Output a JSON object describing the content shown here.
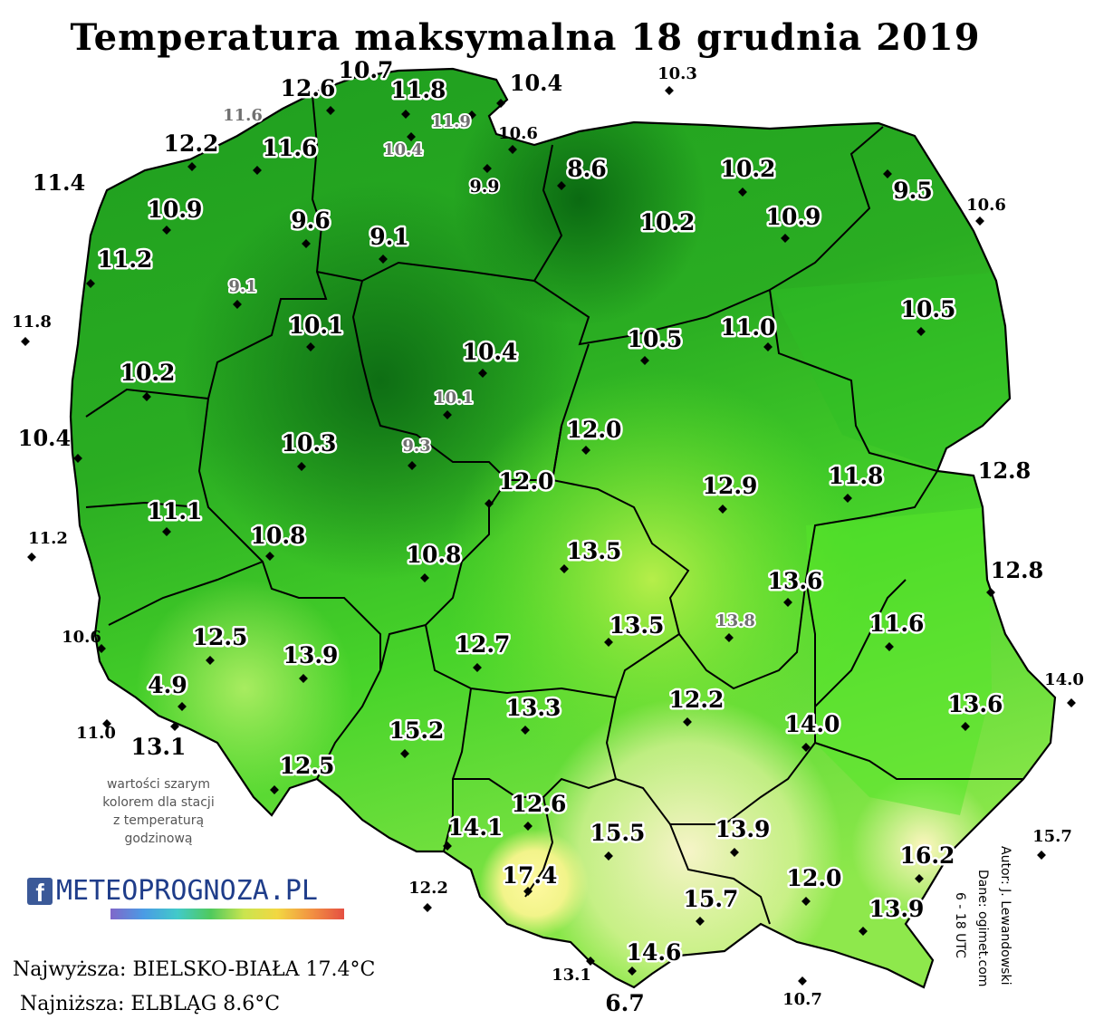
{
  "title": "Temperatura maksymalna 18 grudnia 2019",
  "note": [
    "wartości szarym",
    "kolorem dla stacji",
    "z temperaturą",
    "godzinową"
  ],
  "logo": {
    "fb": "f",
    "text": "METEOPROGNOZA.PL"
  },
  "extremes": {
    "max": "Najwyższa: BIELSKO-BIAŁA 17.4°C",
    "min": "Najniższa: ELBLĄG 8.6°C"
  },
  "credits": {
    "author": "Autor: J. Lewandowski",
    "data_source": "Dane: ogimet.com",
    "hours": "6 - 18 UTC"
  },
  "colors": {
    "cold": "#0f7a18",
    "mid": "#2fb820",
    "light": "#5ee82c",
    "warm": "#b8f060",
    "hot": "#f4f4a8",
    "border": "#000000"
  },
  "stations_inside": [
    "12.6",
    "10.7",
    "11.8",
    "11.6",
    "12.2",
    "10.9",
    "11.2",
    "9.6",
    "9.1",
    "10.1",
    "10.2",
    "11.1",
    "10.8",
    "10.3",
    "10.4",
    "12.0",
    "10.5",
    "11.0",
    "10.2",
    "10.9",
    "9.5",
    "8.6",
    "10.2",
    "10.5",
    "12.9",
    "11.8",
    "13.5",
    "13.6",
    "11.6",
    "13.5",
    "12.5",
    "13.9",
    "4.9",
    "13.1",
    "12.5",
    "15.2",
    "13.3",
    "12.7",
    "12.2",
    "14.0",
    "13.6",
    "12.6",
    "14.1",
    "15.5",
    "13.9",
    "16.2",
    "17.4",
    "15.7",
    "12.0",
    "13.9",
    "14.6",
    "6.7",
    "10.8",
    "12.0"
  ],
  "stations_gray": [
    "11.6",
    "10.4",
    "11.9",
    "9.1",
    "10.1",
    "9.3",
    "13.8"
  ],
  "stations_outside": [
    "10.4",
    "10.3",
    "10.6",
    "11.4",
    "11.8",
    "10.4",
    "11.2",
    "10.6",
    "11.0",
    "12.2",
    "13.1",
    "10.7",
    "15.7",
    "14.0",
    "12.8",
    "12.8",
    "10.6",
    "9.9"
  ]
}
